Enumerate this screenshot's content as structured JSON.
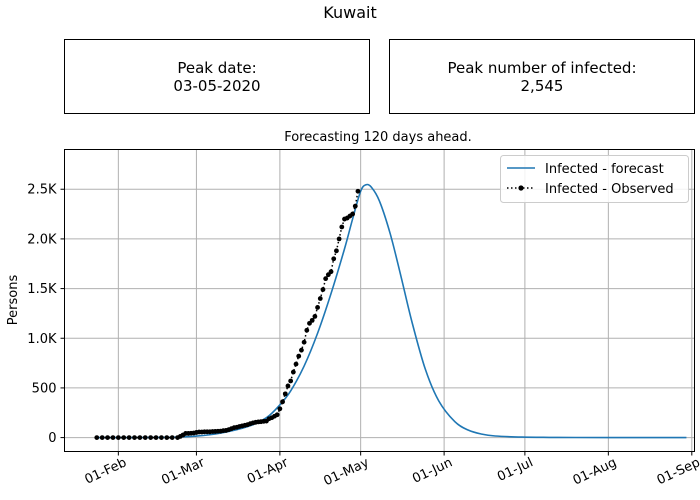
{
  "title": "Kuwait",
  "boxes": {
    "peak_date_label": "Peak date:",
    "peak_date_value": "03-05-2020",
    "peak_infected_label": "Peak number of infected:",
    "peak_infected_value": "2,545"
  },
  "chart_data": {
    "type": "line",
    "title": "Forecasting 120 days ahead.",
    "xlabel": "",
    "ylabel": "Persons",
    "x_tick_labels": [
      "01-Feb",
      "01-Mar",
      "01-Apr",
      "01-May",
      "01-Jun",
      "01-Jul",
      "01-Aug",
      "01-Sep"
    ],
    "y_tick_labels": [
      "0",
      "500",
      "1.0K",
      "1.5K",
      "2.0K",
      "2.5K"
    ],
    "y_ticks": [
      0,
      500,
      1000,
      1500,
      2000,
      2500
    ],
    "xlim": [
      "2020-01-12",
      "2020-09-02"
    ],
    "ylim": [
      -140,
      2900
    ],
    "grid": true,
    "legend_position": "top-right",
    "colors": {
      "forecast": "#1f77b4",
      "observed": "#000000",
      "grid": "#b0b0b0"
    },
    "series": [
      {
        "name": "Infected - forecast",
        "style": "solid line",
        "x": [
          "2020-01-24",
          "2020-02-20",
          "2020-03-01",
          "2020-03-10",
          "2020-03-20",
          "2020-03-27",
          "2020-04-01",
          "2020-04-05",
          "2020-04-10",
          "2020-04-15",
          "2020-04-20",
          "2020-04-25",
          "2020-04-28",
          "2020-05-01",
          "2020-05-03",
          "2020-05-05",
          "2020-05-08",
          "2020-05-12",
          "2020-05-16",
          "2020-05-20",
          "2020-05-25",
          "2020-05-30",
          "2020-06-05",
          "2020-06-10",
          "2020-06-15",
          "2020-06-20",
          "2020-06-30",
          "2020-07-10",
          "2020-07-20",
          "2020-08-01",
          "2020-08-15",
          "2020-08-30"
        ],
        "values": [
          0,
          3,
          15,
          45,
          110,
          200,
          330,
          470,
          720,
          1050,
          1450,
          1900,
          2200,
          2480,
          2545,
          2520,
          2380,
          2050,
          1620,
          1170,
          690,
          370,
          160,
          75,
          35,
          16,
          5,
          2,
          1,
          0,
          0,
          0
        ]
      },
      {
        "name": "Infected - Observed",
        "style": "dotted line with points",
        "x": [
          "2020-01-24",
          "2020-01-26",
          "2020-01-28",
          "2020-01-30",
          "2020-02-01",
          "2020-02-03",
          "2020-02-05",
          "2020-02-07",
          "2020-02-09",
          "2020-02-11",
          "2020-02-13",
          "2020-02-15",
          "2020-02-17",
          "2020-02-19",
          "2020-02-21",
          "2020-02-23",
          "2020-02-24",
          "2020-02-25",
          "2020-02-26",
          "2020-02-27",
          "2020-02-28",
          "2020-02-29",
          "2020-03-01",
          "2020-03-02",
          "2020-03-03",
          "2020-03-04",
          "2020-03-05",
          "2020-03-06",
          "2020-03-07",
          "2020-03-08",
          "2020-03-09",
          "2020-03-10",
          "2020-03-11",
          "2020-03-12",
          "2020-03-13",
          "2020-03-14",
          "2020-03-15",
          "2020-03-16",
          "2020-03-17",
          "2020-03-18",
          "2020-03-19",
          "2020-03-20",
          "2020-03-21",
          "2020-03-22",
          "2020-03-23",
          "2020-03-24",
          "2020-03-25",
          "2020-03-26",
          "2020-03-27",
          "2020-03-28",
          "2020-03-29",
          "2020-03-30",
          "2020-03-31",
          "2020-04-01",
          "2020-04-02",
          "2020-04-03",
          "2020-04-04",
          "2020-04-05",
          "2020-04-06",
          "2020-04-07",
          "2020-04-08",
          "2020-04-09",
          "2020-04-10",
          "2020-04-11",
          "2020-04-12",
          "2020-04-13",
          "2020-04-14",
          "2020-04-15",
          "2020-04-16",
          "2020-04-17",
          "2020-04-18",
          "2020-04-19",
          "2020-04-20",
          "2020-04-21",
          "2020-04-22",
          "2020-04-23",
          "2020-04-24",
          "2020-04-25",
          "2020-04-26",
          "2020-04-27",
          "2020-04-28",
          "2020-04-29",
          "2020-04-30"
        ],
        "values": [
          0,
          0,
          0,
          0,
          0,
          0,
          0,
          0,
          0,
          0,
          0,
          0,
          0,
          0,
          0,
          0,
          12,
          26,
          42,
          42,
          44,
          46,
          52,
          56,
          56,
          58,
          58,
          58,
          61,
          62,
          64,
          65,
          70,
          72,
          80,
          90,
          100,
          104,
          112,
          118,
          124,
          130,
          140,
          148,
          154,
          158,
          160,
          164,
          166,
          190,
          200,
          215,
          230,
          290,
          360,
          440,
          520,
          570,
          660,
          740,
          820,
          880,
          960,
          1080,
          1150,
          1180,
          1220,
          1310,
          1400,
          1490,
          1600,
          1640,
          1670,
          1800,
          1880,
          2000,
          2120,
          2200,
          2210,
          2230,
          2250,
          2330,
          2480
        ]
      }
    ]
  }
}
